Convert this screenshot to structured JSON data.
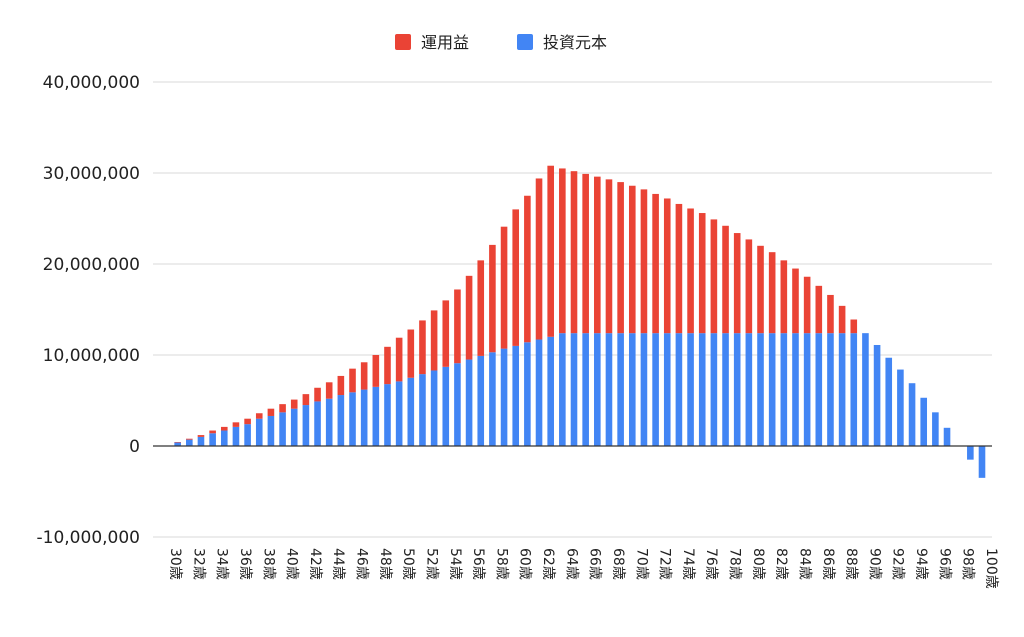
{
  "chart_data": {
    "type": "bar",
    "stacked": true,
    "title": "",
    "xlabel": "",
    "ylabel": "",
    "ylim": [
      -10000000,
      40000000
    ],
    "yticks": [
      -10000000,
      0,
      10000000,
      20000000,
      30000000,
      40000000
    ],
    "ytick_labels": [
      "-10,000,000",
      "0",
      "10,000,000",
      "20,000,000",
      "30,000,000",
      "40,000,000"
    ],
    "grid": true,
    "legend_position": "top-center",
    "categories": [
      "30歳",
      "31歳",
      "32歳",
      "33歳",
      "34歳",
      "35歳",
      "36歳",
      "37歳",
      "38歳",
      "39歳",
      "40歳",
      "41歳",
      "42歳",
      "43歳",
      "44歳",
      "45歳",
      "46歳",
      "47歳",
      "48歳",
      "49歳",
      "50歳",
      "51歳",
      "52歳",
      "53歳",
      "54歳",
      "55歳",
      "56歳",
      "57歳",
      "58歳",
      "59歳",
      "60歳",
      "61歳",
      "62歳",
      "63歳",
      "64歳",
      "65歳",
      "66歳",
      "67歳",
      "68歳",
      "69歳",
      "70歳",
      "71歳",
      "72歳",
      "73歳",
      "74歳",
      "75歳",
      "76歳",
      "77歳",
      "78歳",
      "79歳",
      "80歳",
      "81歳",
      "82歳",
      "83歳",
      "84歳",
      "85歳",
      "86歳",
      "87歳",
      "88歳",
      "89歳",
      "90歳",
      "91歳",
      "92歳",
      "93歳",
      "94歳",
      "95歳",
      "96歳",
      "97歳",
      "98歳",
      "99歳",
      "100歳"
    ],
    "series": [
      {
        "name": "投資元本",
        "color": "#4285F4",
        "values": [
          0,
          400000,
          700000,
          1000000,
          1400000,
          1700000,
          2100000,
          2400000,
          3000000,
          3300000,
          3700000,
          4100000,
          4500000,
          4900000,
          5200000,
          5600000,
          5900000,
          6200000,
          6500000,
          6800000,
          7100000,
          7500000,
          7900000,
          8300000,
          8700000,
          9100000,
          9500000,
          9900000,
          10300000,
          10700000,
          11000000,
          11400000,
          11700000,
          12000000,
          12400000,
          12400000,
          12400000,
          12400000,
          12400000,
          12400000,
          12400000,
          12400000,
          12400000,
          12400000,
          12400000,
          12400000,
          12400000,
          12400000,
          12400000,
          12400000,
          12400000,
          12400000,
          12400000,
          12400000,
          12400000,
          12400000,
          12400000,
          12400000,
          12400000,
          12400000,
          12400000,
          11100000,
          9700000,
          8400000,
          6900000,
          5300000,
          3700000,
          2000000,
          0,
          -1500000,
          -3500000
        ]
      },
      {
        "name": "運用益",
        "color": "#EA4335",
        "values": [
          0,
          30000,
          100000,
          200000,
          300000,
          400000,
          500000,
          600000,
          600000,
          800000,
          900000,
          1000000,
          1200000,
          1500000,
          1800000,
          2100000,
          2600000,
          3000000,
          3500000,
          4100000,
          4800000,
          5300000,
          5900000,
          6600000,
          7300000,
          8100000,
          9200000,
          10500000,
          11800000,
          13400000,
          15000000,
          16100000,
          17700000,
          18800000,
          18100000,
          17800000,
          17500000,
          17200000,
          16900000,
          16600000,
          16200000,
          15800000,
          15300000,
          14800000,
          14200000,
          13700000,
          13200000,
          12500000,
          11800000,
          11000000,
          10300000,
          9600000,
          8900000,
          8000000,
          7100000,
          6200000,
          5200000,
          4200000,
          3000000,
          1500000,
          0,
          0,
          0,
          0,
          0,
          0,
          0,
          0,
          0,
          0,
          0
        ]
      }
    ],
    "legend": [
      {
        "label": "運用益",
        "color": "#EA4335"
      },
      {
        "label": "投資元本",
        "color": "#4285F4"
      }
    ]
  }
}
